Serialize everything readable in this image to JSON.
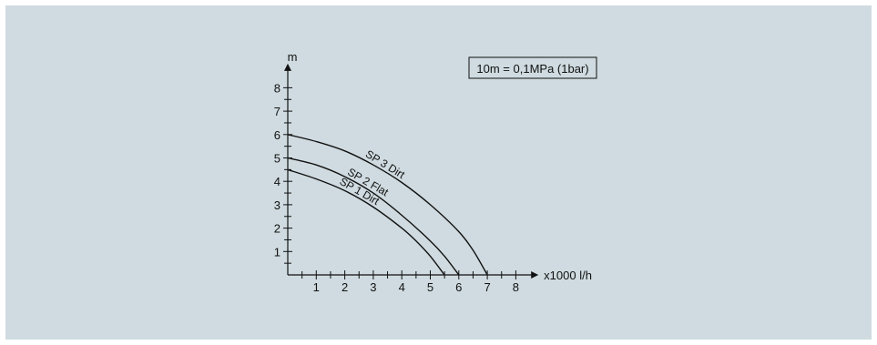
{
  "colors": {
    "background": "#cfdbe0",
    "ink": "#111111"
  },
  "chart_data": {
    "type": "line",
    "title": "",
    "xlabel": "x1000 l/h",
    "ylabel": "m",
    "xlim": [
      0,
      8.6
    ],
    "ylim": [
      0,
      8.8
    ],
    "x_ticks": [
      "1",
      "2",
      "3",
      "4",
      "5",
      "6",
      "7",
      "8"
    ],
    "y_ticks": [
      "1",
      "2",
      "3",
      "4",
      "5",
      "6",
      "7",
      "8"
    ],
    "x_minor_step": 0.5,
    "y_minor_step": 0.5,
    "grid": false,
    "note": "10m = 0,1MPa (1bar)",
    "series": [
      {
        "name": "SP 3 Dirt",
        "x": [
          0,
          1,
          2,
          3,
          4,
          5,
          6,
          6.5,
          7
        ],
        "y": [
          6.0,
          5.7,
          5.3,
          4.7,
          3.95,
          3.0,
          1.85,
          1.05,
          0.0
        ]
      },
      {
        "name": "SP 2 Flat",
        "x": [
          0,
          1,
          2,
          3,
          4,
          5,
          5.5,
          6
        ],
        "y": [
          5.0,
          4.7,
          4.2,
          3.5,
          2.55,
          1.45,
          0.8,
          0.0
        ]
      },
      {
        "name": "SP 1 Dirt",
        "x": [
          0,
          1,
          2,
          3,
          4,
          4.5,
          5,
          5.5
        ],
        "y": [
          4.5,
          4.1,
          3.6,
          2.9,
          2.0,
          1.45,
          0.8,
          0.0
        ]
      }
    ]
  }
}
